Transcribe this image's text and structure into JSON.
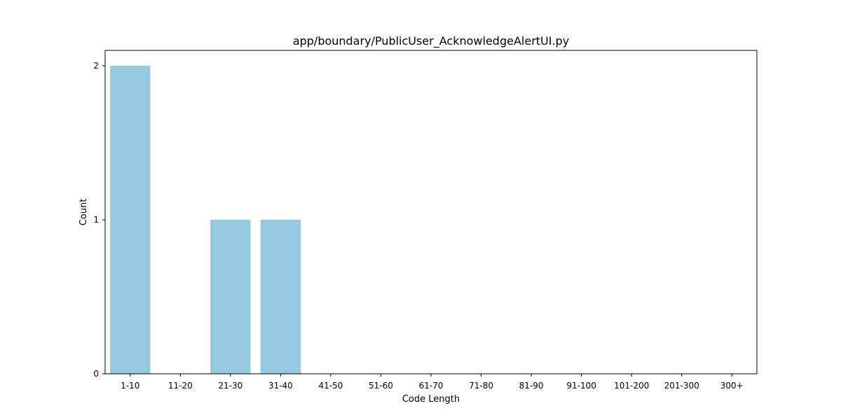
{
  "chart_data": {
    "type": "bar",
    "title": "app/boundary/PublicUser_AcknowledgeAlertUI.py",
    "xlabel": "Code Length",
    "ylabel": "Count",
    "categories": [
      "1-10",
      "11-20",
      "21-30",
      "31-40",
      "41-50",
      "51-60",
      "61-70",
      "71-80",
      "81-90",
      "91-100",
      "101-200",
      "201-300",
      "300+"
    ],
    "values": [
      2,
      0,
      1,
      1,
      0,
      0,
      0,
      0,
      0,
      0,
      0,
      0,
      0
    ],
    "yticks": [
      "0",
      "1",
      "2"
    ],
    "ylim": [
      0,
      2.1
    ],
    "bar_color": "#95c9df",
    "grid": false,
    "legend": "none"
  }
}
